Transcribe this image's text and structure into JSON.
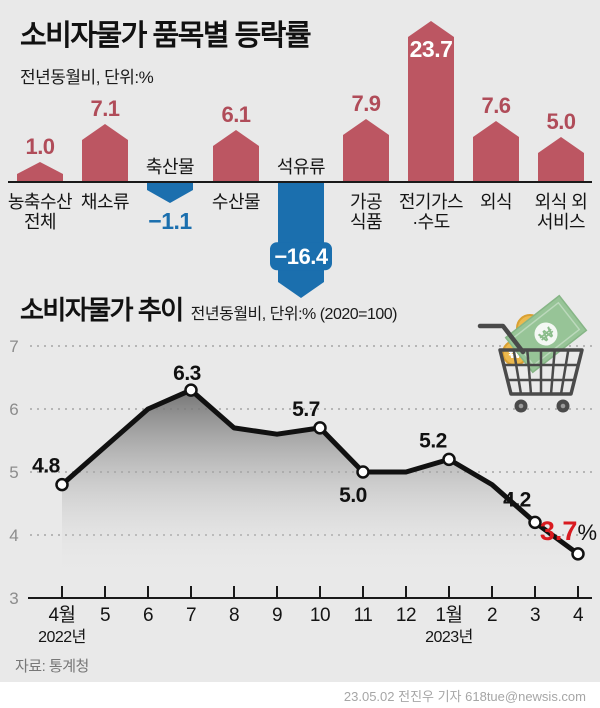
{
  "header": {
    "title_light": "소비자물가",
    "title_bold": "품목별 등락률"
  },
  "icons": {
    "won_symbol": "₩",
    "cart": "shopping-cart"
  },
  "chart_data": [
    {
      "type": "bar",
      "title": "소비자물가 품목별 등락률",
      "subtitle": "전년동월비, 단위:%",
      "categories": [
        "농축수산 전체",
        "채소류",
        "축산물",
        "수산물",
        "석유류",
        "가공식품",
        "전기가스·수도",
        "외식",
        "외식 외 서비스"
      ],
      "category_lines": [
        [
          "농축수산",
          "전체"
        ],
        [
          "채소류"
        ],
        [
          "축산물"
        ],
        [
          "수산물"
        ],
        [
          "석유류"
        ],
        [
          "가공",
          "식품"
        ],
        [
          "전기가스",
          "·수도"
        ],
        [
          "외식"
        ],
        [
          "외식 외",
          "서비스"
        ]
      ],
      "values": [
        1.0,
        7.1,
        -1.1,
        6.1,
        -16.4,
        7.9,
        23.7,
        7.6,
        5.0
      ],
      "value_labels": [
        "1.0",
        "7.1",
        "−1.1",
        "6.1",
        "−16.4",
        "7.9",
        "23.7",
        "7.6",
        "5.0"
      ],
      "colors": {
        "positive": "#bc5662",
        "negative": "#1b6fae",
        "value_positive": "#b04c59",
        "value_inside": "#ffffff"
      }
    },
    {
      "type": "line",
      "title": "소비자물가 추이",
      "subtitle": "전년동월비, 단위:% (2020=100)",
      "x_labels": [
        "4월",
        "5",
        "6",
        "7",
        "8",
        "9",
        "10",
        "11",
        "12",
        "1월",
        "2",
        "3",
        "4"
      ],
      "year_labels": [
        {
          "index": 0,
          "text": "2022년"
        },
        {
          "index": 9,
          "text": "2023년"
        }
      ],
      "values": [
        4.8,
        5.4,
        6.0,
        6.3,
        5.7,
        5.6,
        5.7,
        5.0,
        5.0,
        5.2,
        4.8,
        4.2,
        3.7
      ],
      "point_labels": [
        {
          "index": 0,
          "text": "4.8"
        },
        {
          "index": 3,
          "text": "6.3"
        },
        {
          "index": 6,
          "text": "5.7"
        },
        {
          "index": 7,
          "text": "5.0"
        },
        {
          "index": 9,
          "text": "5.2"
        },
        {
          "index": 11,
          "text": "4.2"
        },
        {
          "index": 12,
          "text": "3.7",
          "suffix": "%",
          "highlight": true
        }
      ],
      "yticks": [
        3,
        4,
        5,
        6,
        7
      ],
      "ylim": [
        3,
        7
      ],
      "grid": "dashed",
      "legend": "none",
      "colors": {
        "line": "#111111",
        "highlight": "#d91a20",
        "area_top": "#6f6f6f"
      }
    }
  ],
  "footer": {
    "source": "자료: 통계청",
    "credit": "23.05.02 전진우 기자 618tue@newsis.com"
  }
}
